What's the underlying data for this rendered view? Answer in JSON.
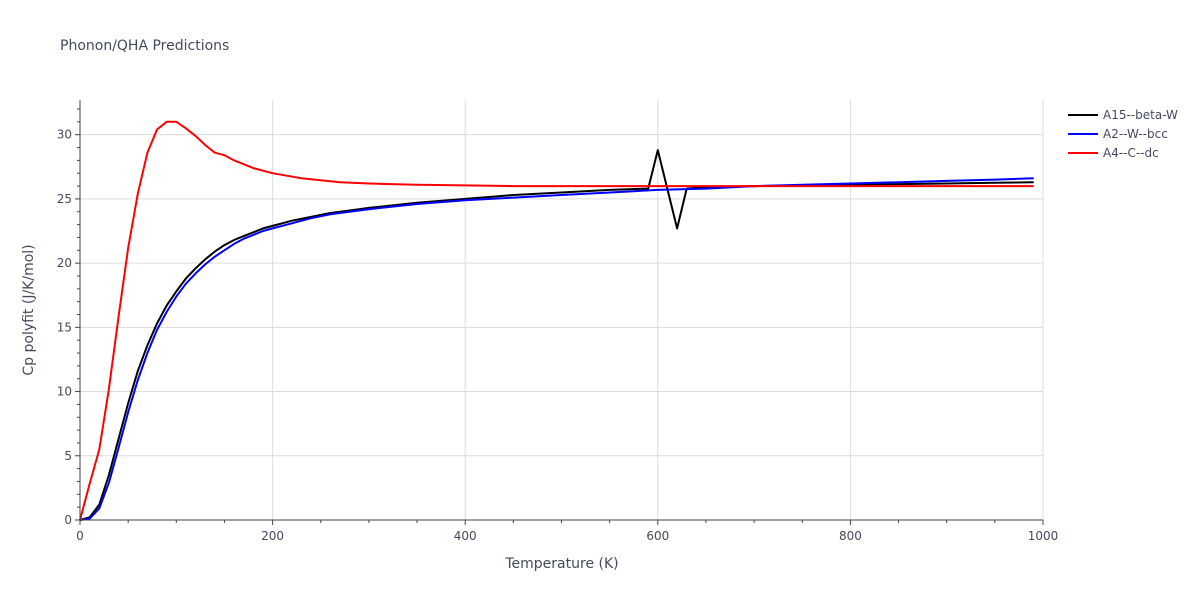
{
  "chart_data": {
    "type": "line",
    "title": "Phonon/QHA Predictions",
    "xlabel": "Temperature (K)",
    "ylabel": "Cp polyfit (J/K/mol)",
    "xlim": [
      0,
      1000
    ],
    "ylim": [
      0,
      32.7
    ],
    "xticks": [
      0,
      200,
      400,
      600,
      800,
      1000
    ],
    "yticks": [
      0,
      5,
      10,
      15,
      20,
      25,
      30
    ],
    "grid": true,
    "legend_position": "top-right",
    "series": [
      {
        "name": "A15--beta-W",
        "color": "#000000",
        "x": [
          0,
          10,
          20,
          30,
          40,
          50,
          60,
          70,
          80,
          90,
          100,
          110,
          120,
          130,
          140,
          150,
          160,
          170,
          180,
          190,
          200,
          220,
          240,
          260,
          280,
          300,
          350,
          400,
          450,
          500,
          550,
          590,
          600,
          620,
          630,
          650,
          700,
          750,
          800,
          850,
          900,
          950,
          990
        ],
        "y": [
          0,
          0.2,
          1.2,
          3.5,
          6.3,
          9.1,
          11.6,
          13.6,
          15.3,
          16.7,
          17.8,
          18.8,
          19.6,
          20.3,
          20.9,
          21.4,
          21.8,
          22.1,
          22.4,
          22.7,
          22.9,
          23.3,
          23.6,
          23.9,
          24.1,
          24.3,
          24.7,
          25.0,
          25.3,
          25.5,
          25.7,
          25.8,
          28.8,
          22.7,
          25.8,
          25.9,
          26.0,
          26.05,
          26.1,
          26.15,
          26.2,
          26.25,
          26.3
        ]
      },
      {
        "name": "A2--W--bcc",
        "color": "#0000ff",
        "x": [
          0,
          10,
          20,
          30,
          40,
          50,
          60,
          70,
          80,
          90,
          100,
          110,
          120,
          130,
          140,
          150,
          160,
          170,
          180,
          190,
          200,
          220,
          240,
          260,
          280,
          300,
          350,
          400,
          450,
          500,
          550,
          600,
          650,
          700,
          750,
          800,
          850,
          900,
          950,
          990
        ],
        "y": [
          0,
          0.1,
          0.9,
          2.9,
          5.6,
          8.4,
          10.9,
          13.0,
          14.8,
          16.2,
          17.4,
          18.4,
          19.2,
          19.9,
          20.5,
          21.0,
          21.5,
          21.9,
          22.2,
          22.5,
          22.7,
          23.1,
          23.5,
          23.8,
          24.0,
          24.2,
          24.6,
          24.9,
          25.1,
          25.3,
          25.5,
          25.7,
          25.8,
          26.0,
          26.1,
          26.2,
          26.3,
          26.4,
          26.5,
          26.6
        ]
      },
      {
        "name": "A4--C--dc",
        "color": "#ff0000",
        "x": [
          0,
          10,
          20,
          30,
          40,
          50,
          60,
          70,
          80,
          90,
          100,
          110,
          120,
          130,
          140,
          150,
          160,
          170,
          180,
          200,
          230,
          270,
          300,
          350,
          400,
          450,
          500,
          550,
          600,
          650,
          700,
          750,
          800,
          850,
          900,
          950,
          990
        ],
        "y": [
          0,
          2.8,
          5.5,
          10.2,
          15.8,
          21.2,
          25.4,
          28.6,
          30.4,
          31.0,
          31.0,
          30.5,
          29.9,
          29.2,
          28.6,
          28.4,
          28.0,
          27.7,
          27.4,
          27.0,
          26.6,
          26.3,
          26.2,
          26.1,
          26.05,
          26.0,
          26.0,
          26.0,
          26.0,
          26.0,
          26.0,
          26.0,
          26.0,
          26.0,
          26.0,
          26.0,
          26.0
        ]
      }
    ]
  }
}
